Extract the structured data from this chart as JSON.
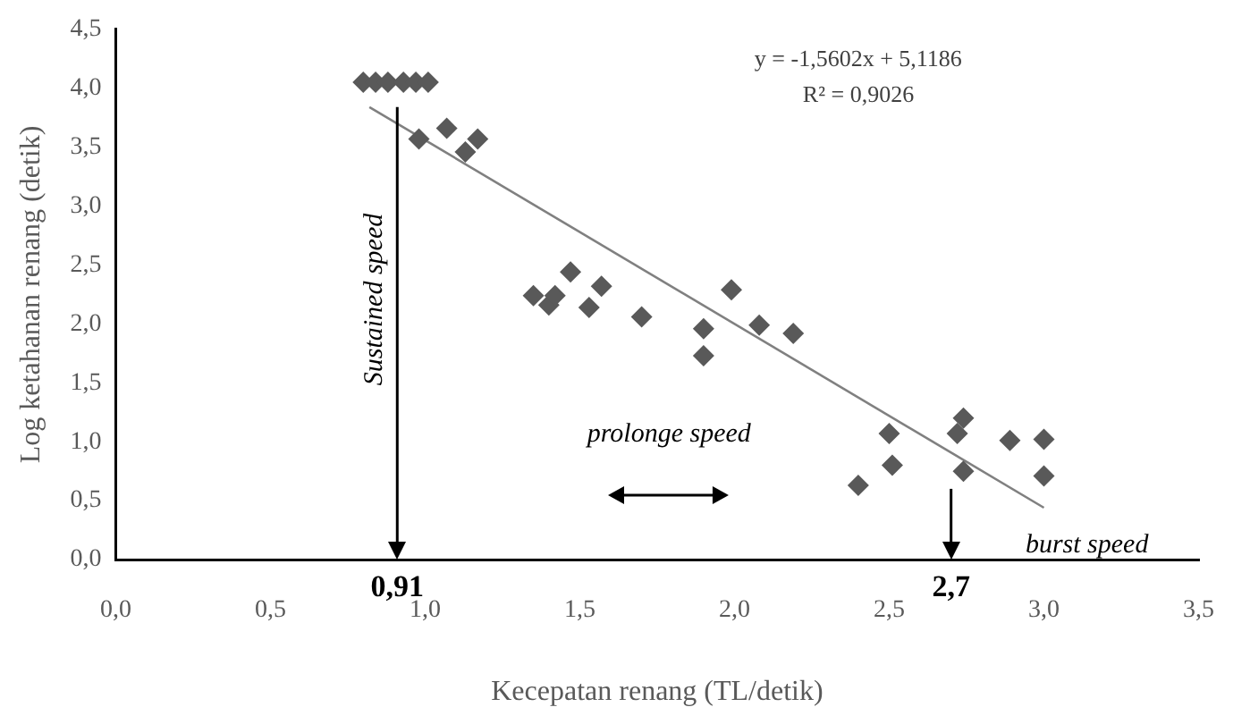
{
  "chart_data": {
    "type": "scatter",
    "xlabel": "Kecepatan renang (TL/detik)",
    "ylabel": "Log ketahanan renang (detik)",
    "xlim": [
      0,
      3.5
    ],
    "ylim": [
      0,
      4.5
    ],
    "xticks": [
      {
        "value": 0,
        "label": "0,0"
      },
      {
        "value": 0.5,
        "label": "0,5"
      },
      {
        "value": 1,
        "label": "1,0"
      },
      {
        "value": 1.5,
        "label": "1,5"
      },
      {
        "value": 2,
        "label": "2,0"
      },
      {
        "value": 2.5,
        "label": "2,5"
      },
      {
        "value": 3,
        "label": "3,0"
      },
      {
        "value": 3.5,
        "label": "3,5"
      }
    ],
    "yticks": [
      {
        "value": 0,
        "label": "0,0"
      },
      {
        "value": 0.5,
        "label": "0,5"
      },
      {
        "value": 1,
        "label": "1,0"
      },
      {
        "value": 1.5,
        "label": "1,5"
      },
      {
        "value": 2,
        "label": "2,0"
      },
      {
        "value": 2.5,
        "label": "2,5"
      },
      {
        "value": 3,
        "label": "3,0"
      },
      {
        "value": 3.5,
        "label": "3,5"
      },
      {
        "value": 4,
        "label": "4,0"
      },
      {
        "value": 4.5,
        "label": "4,5"
      }
    ],
    "grid": false,
    "legend": false,
    "marker": "diamond",
    "series": [
      {
        "type": "scatter",
        "color": "#595959",
        "x": [
          0.8,
          0.84,
          0.88,
          0.93,
          0.97,
          1.01,
          0.98,
          1.07,
          1.17,
          1.13,
          1.35,
          1.4,
          1.42,
          1.47,
          1.57,
          1.53,
          1.7,
          1.9,
          1.9,
          1.99,
          2.08,
          2.19,
          2.5,
          2.51,
          2.4,
          2.74,
          2.72,
          2.74,
          2.89,
          3.0,
          3.0
        ],
        "values": [
          4.05,
          4.05,
          4.05,
          4.05,
          4.05,
          4.05,
          3.57,
          3.66,
          3.57,
          3.46,
          2.24,
          2.16,
          2.24,
          2.44,
          2.32,
          2.14,
          2.06,
          1.96,
          1.73,
          2.29,
          1.99,
          1.92,
          1.07,
          0.8,
          0.63,
          1.2,
          1.07,
          0.75,
          1.01,
          1.02,
          0.71
        ]
      },
      {
        "type": "line",
        "color": "#808080",
        "marker": "none",
        "x": [
          0.82,
          3.0
        ],
        "values": [
          3.84,
          0.44
        ]
      }
    ],
    "ref_lines": [
      {
        "axis": "x",
        "value": 0.91,
        "label": "0,91",
        "color": "#000000"
      },
      {
        "axis": "x",
        "value": 2.7,
        "label": "2,7",
        "color": "#000000"
      }
    ],
    "annotations": [
      "y = -1,5602x + 5,1186",
      "R² = 0,9026",
      "Sustained speed",
      "prolonge speed",
      "burst speed"
    ]
  }
}
